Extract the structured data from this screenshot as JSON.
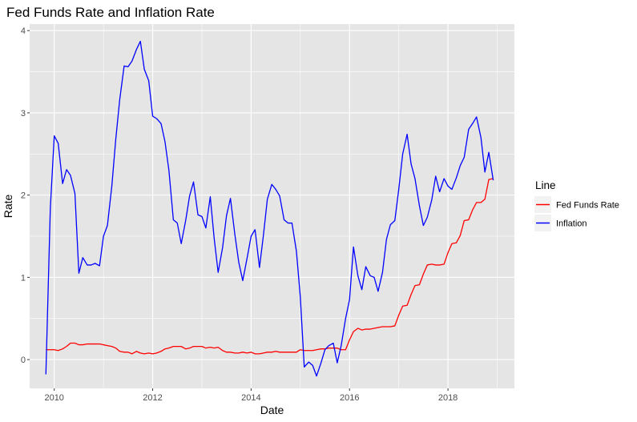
{
  "chart_data": {
    "type": "line",
    "title": "Fed Funds Rate and Inflation Rate",
    "xlabel": "Date",
    "ylabel": "Rate",
    "xlim": [
      2009.5,
      2019.35
    ],
    "ylim": [
      -0.35,
      4.08
    ],
    "x_ticks": [
      2010,
      2012,
      2014,
      2016,
      2018
    ],
    "x_tick_labels": [
      "2010",
      "2012",
      "2014",
      "2016",
      "2018"
    ],
    "y_ticks": [
      0,
      1,
      2,
      3,
      4
    ],
    "y_tick_labels": [
      "0",
      "1",
      "2",
      "3",
      "4"
    ],
    "grid": true,
    "background": "#e5e5e5",
    "grid_color": "#ffffff",
    "legend": {
      "title": "Line",
      "position": "right",
      "entries": [
        {
          "label": "Fed Funds Rate",
          "color": "#ff0000"
        },
        {
          "label": "Inflation",
          "color": "#0000ff"
        }
      ]
    },
    "series": [
      {
        "name": "Fed Funds Rate",
        "color": "#ff0000",
        "points": [
          [
            2009.83,
            0.12
          ],
          [
            2009.92,
            0.12
          ],
          [
            2010.0,
            0.12
          ],
          [
            2010.08,
            0.11
          ],
          [
            2010.17,
            0.13
          ],
          [
            2010.25,
            0.16
          ],
          [
            2010.33,
            0.2
          ],
          [
            2010.42,
            0.2
          ],
          [
            2010.5,
            0.18
          ],
          [
            2010.58,
            0.18
          ],
          [
            2010.67,
            0.19
          ],
          [
            2010.75,
            0.19
          ],
          [
            2010.83,
            0.19
          ],
          [
            2010.92,
            0.19
          ],
          [
            2011.0,
            0.18
          ],
          [
            2011.08,
            0.17
          ],
          [
            2011.17,
            0.16
          ],
          [
            2011.25,
            0.14
          ],
          [
            2011.33,
            0.1
          ],
          [
            2011.42,
            0.09
          ],
          [
            2011.5,
            0.09
          ],
          [
            2011.58,
            0.07
          ],
          [
            2011.67,
            0.1
          ],
          [
            2011.75,
            0.08
          ],
          [
            2011.83,
            0.07
          ],
          [
            2011.92,
            0.08
          ],
          [
            2012.0,
            0.07
          ],
          [
            2012.08,
            0.08
          ],
          [
            2012.17,
            0.1
          ],
          [
            2012.25,
            0.13
          ],
          [
            2012.33,
            0.14
          ],
          [
            2012.42,
            0.16
          ],
          [
            2012.5,
            0.16
          ],
          [
            2012.58,
            0.16
          ],
          [
            2012.67,
            0.13
          ],
          [
            2012.75,
            0.14
          ],
          [
            2012.83,
            0.16
          ],
          [
            2012.92,
            0.16
          ],
          [
            2013.0,
            0.16
          ],
          [
            2013.08,
            0.14
          ],
          [
            2013.17,
            0.15
          ],
          [
            2013.25,
            0.14
          ],
          [
            2013.33,
            0.15
          ],
          [
            2013.42,
            0.11
          ],
          [
            2013.5,
            0.09
          ],
          [
            2013.58,
            0.09
          ],
          [
            2013.67,
            0.08
          ],
          [
            2013.75,
            0.08
          ],
          [
            2013.83,
            0.09
          ],
          [
            2013.92,
            0.08
          ],
          [
            2014.0,
            0.09
          ],
          [
            2014.08,
            0.07
          ],
          [
            2014.17,
            0.07
          ],
          [
            2014.25,
            0.08
          ],
          [
            2014.33,
            0.09
          ],
          [
            2014.42,
            0.09
          ],
          [
            2014.5,
            0.1
          ],
          [
            2014.58,
            0.09
          ],
          [
            2014.67,
            0.09
          ],
          [
            2014.75,
            0.09
          ],
          [
            2014.83,
            0.09
          ],
          [
            2014.92,
            0.09
          ],
          [
            2015.0,
            0.12
          ],
          [
            2015.08,
            0.11
          ],
          [
            2015.17,
            0.11
          ],
          [
            2015.25,
            0.11
          ],
          [
            2015.33,
            0.12
          ],
          [
            2015.42,
            0.13
          ],
          [
            2015.5,
            0.13
          ],
          [
            2015.58,
            0.14
          ],
          [
            2015.67,
            0.14
          ],
          [
            2015.75,
            0.14
          ],
          [
            2015.83,
            0.12
          ],
          [
            2015.92,
            0.12
          ],
          [
            2016.0,
            0.24
          ],
          [
            2016.08,
            0.34
          ],
          [
            2016.17,
            0.38
          ],
          [
            2016.25,
            0.36
          ],
          [
            2016.33,
            0.37
          ],
          [
            2016.42,
            0.37
          ],
          [
            2016.5,
            0.38
          ],
          [
            2016.58,
            0.39
          ],
          [
            2016.67,
            0.4
          ],
          [
            2016.75,
            0.4
          ],
          [
            2016.83,
            0.4
          ],
          [
            2016.92,
            0.41
          ],
          [
            2017.0,
            0.54
          ],
          [
            2017.08,
            0.65
          ],
          [
            2017.17,
            0.66
          ],
          [
            2017.25,
            0.79
          ],
          [
            2017.33,
            0.9
          ],
          [
            2017.42,
            0.91
          ],
          [
            2017.5,
            1.04
          ],
          [
            2017.58,
            1.15
          ],
          [
            2017.67,
            1.16
          ],
          [
            2017.75,
            1.15
          ],
          [
            2017.83,
            1.15
          ],
          [
            2017.92,
            1.16
          ],
          [
            2018.0,
            1.3
          ],
          [
            2018.08,
            1.41
          ],
          [
            2018.17,
            1.42
          ],
          [
            2018.25,
            1.51
          ],
          [
            2018.33,
            1.69
          ],
          [
            2018.42,
            1.7
          ],
          [
            2018.5,
            1.82
          ],
          [
            2018.58,
            1.91
          ],
          [
            2018.67,
            1.91
          ],
          [
            2018.75,
            1.95
          ],
          [
            2018.83,
            2.19
          ],
          [
            2018.92,
            2.2
          ]
        ]
      },
      {
        "name": "Inflation",
        "color": "#0000ff",
        "points": [
          [
            2009.83,
            -0.18
          ],
          [
            2009.92,
            1.84
          ],
          [
            2010.0,
            2.72
          ],
          [
            2010.08,
            2.63
          ],
          [
            2010.17,
            2.14
          ],
          [
            2010.25,
            2.31
          ],
          [
            2010.33,
            2.24
          ],
          [
            2010.42,
            2.02
          ],
          [
            2010.5,
            1.05
          ],
          [
            2010.58,
            1.24
          ],
          [
            2010.67,
            1.15
          ],
          [
            2010.75,
            1.15
          ],
          [
            2010.83,
            1.17
          ],
          [
            2010.92,
            1.14
          ],
          [
            2011.0,
            1.5
          ],
          [
            2011.08,
            1.63
          ],
          [
            2011.17,
            2.11
          ],
          [
            2011.25,
            2.68
          ],
          [
            2011.33,
            3.16
          ],
          [
            2011.42,
            3.57
          ],
          [
            2011.5,
            3.56
          ],
          [
            2011.58,
            3.63
          ],
          [
            2011.67,
            3.77
          ],
          [
            2011.75,
            3.87
          ],
          [
            2011.83,
            3.53
          ],
          [
            2011.92,
            3.39
          ],
          [
            2012.0,
            2.96
          ],
          [
            2012.08,
            2.93
          ],
          [
            2012.17,
            2.87
          ],
          [
            2012.25,
            2.65
          ],
          [
            2012.33,
            2.3
          ],
          [
            2012.42,
            1.7
          ],
          [
            2012.5,
            1.66
          ],
          [
            2012.58,
            1.41
          ],
          [
            2012.67,
            1.69
          ],
          [
            2012.75,
            1.99
          ],
          [
            2012.83,
            2.16
          ],
          [
            2012.92,
            1.76
          ],
          [
            2013.0,
            1.74
          ],
          [
            2013.08,
            1.6
          ],
          [
            2013.17,
            1.98
          ],
          [
            2013.25,
            1.47
          ],
          [
            2013.33,
            1.06
          ],
          [
            2013.42,
            1.36
          ],
          [
            2013.5,
            1.75
          ],
          [
            2013.58,
            1.96
          ],
          [
            2013.67,
            1.52
          ],
          [
            2013.75,
            1.18
          ],
          [
            2013.83,
            0.96
          ],
          [
            2013.92,
            1.24
          ],
          [
            2014.0,
            1.5
          ],
          [
            2014.08,
            1.58
          ],
          [
            2014.17,
            1.12
          ],
          [
            2014.25,
            1.51
          ],
          [
            2014.33,
            1.95
          ],
          [
            2014.42,
            2.13
          ],
          [
            2014.5,
            2.07
          ],
          [
            2014.58,
            1.99
          ],
          [
            2014.67,
            1.7
          ],
          [
            2014.75,
            1.66
          ],
          [
            2014.83,
            1.66
          ],
          [
            2014.92,
            1.32
          ],
          [
            2015.0,
            0.76
          ],
          [
            2015.08,
            -0.09
          ],
          [
            2015.17,
            -0.03
          ],
          [
            2015.25,
            -0.07
          ],
          [
            2015.33,
            -0.2
          ],
          [
            2015.42,
            -0.04
          ],
          [
            2015.5,
            0.12
          ],
          [
            2015.58,
            0.17
          ],
          [
            2015.67,
            0.2
          ],
          [
            2015.75,
            -0.04
          ],
          [
            2015.83,
            0.17
          ],
          [
            2015.92,
            0.5
          ],
          [
            2016.0,
            0.73
          ],
          [
            2016.08,
            1.37
          ],
          [
            2016.17,
            1.02
          ],
          [
            2016.25,
            0.85
          ],
          [
            2016.33,
            1.13
          ],
          [
            2016.42,
            1.02
          ],
          [
            2016.5,
            1.0
          ],
          [
            2016.58,
            0.83
          ],
          [
            2016.67,
            1.06
          ],
          [
            2016.75,
            1.46
          ],
          [
            2016.83,
            1.64
          ],
          [
            2016.92,
            1.69
          ],
          [
            2017.0,
            2.07
          ],
          [
            2017.08,
            2.5
          ],
          [
            2017.17,
            2.74
          ],
          [
            2017.25,
            2.38
          ],
          [
            2017.33,
            2.2
          ],
          [
            2017.42,
            1.87
          ],
          [
            2017.5,
            1.63
          ],
          [
            2017.58,
            1.73
          ],
          [
            2017.67,
            1.94
          ],
          [
            2017.75,
            2.23
          ],
          [
            2017.83,
            2.04
          ],
          [
            2017.92,
            2.2
          ],
          [
            2018.0,
            2.11
          ],
          [
            2018.08,
            2.07
          ],
          [
            2018.17,
            2.21
          ],
          [
            2018.25,
            2.36
          ],
          [
            2018.33,
            2.46
          ],
          [
            2018.42,
            2.8
          ],
          [
            2018.5,
            2.87
          ],
          [
            2018.58,
            2.95
          ],
          [
            2018.67,
            2.7
          ],
          [
            2018.75,
            2.28
          ],
          [
            2018.83,
            2.52
          ],
          [
            2018.92,
            2.18
          ]
        ]
      }
    ]
  }
}
